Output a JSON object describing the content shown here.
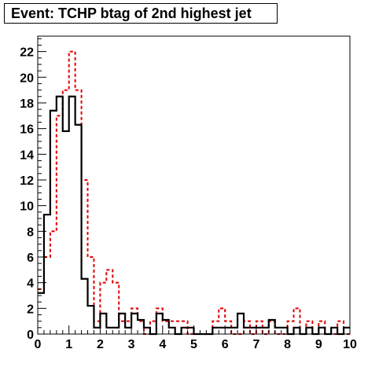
{
  "chart_data": {
    "type": "histogram",
    "title": "Event: TCHP btag of 2nd highest jet",
    "xlabel": "",
    "ylabel": "",
    "xlim": [
      0,
      10
    ],
    "ylim": [
      0,
      23.2
    ],
    "x_ticks": [
      "0",
      "1",
      "2",
      "3",
      "4",
      "5",
      "6",
      "7",
      "8",
      "9",
      "10"
    ],
    "y_ticks": [
      "0",
      "2",
      "4",
      "6",
      "8",
      "10",
      "12",
      "14",
      "16",
      "18",
      "20",
      "22"
    ],
    "bin_edges_start": 0,
    "bin_width": 0.2,
    "grid": false,
    "series": [
      {
        "style": "solid",
        "color": "#000000",
        "values": [
          3.2,
          9.3,
          17.4,
          18.5,
          15.8,
          18.5,
          16.3,
          4.3,
          2.2,
          0.5,
          1.6,
          0.5,
          0.5,
          1.6,
          0.5,
          1.6,
          1.1,
          0.5,
          0,
          1.6,
          1.1,
          0.5,
          0,
          0.5,
          0.5,
          0,
          0,
          0,
          0.5,
          0.5,
          0.5,
          0.5,
          1.6,
          0.5,
          0.5,
          0.5,
          0.5,
          1.1,
          0.5,
          0.5,
          0,
          0.5,
          0,
          0.5,
          0,
          0.5,
          0,
          0.5,
          0,
          0.5
        ]
      },
      {
        "style": "dashed",
        "color": "#e00000",
        "values": [
          3.5,
          6,
          8,
          17,
          19,
          22,
          19,
          12,
          6,
          1,
          4,
          5,
          4,
          1,
          1,
          2,
          1,
          0,
          1,
          2,
          1,
          1,
          1,
          1,
          0,
          0,
          0,
          0,
          1,
          2,
          1,
          0,
          0,
          1,
          0,
          1,
          0,
          1,
          0,
          0,
          1,
          2,
          0,
          1,
          0,
          1,
          0,
          0,
          1,
          0
        ]
      }
    ]
  }
}
